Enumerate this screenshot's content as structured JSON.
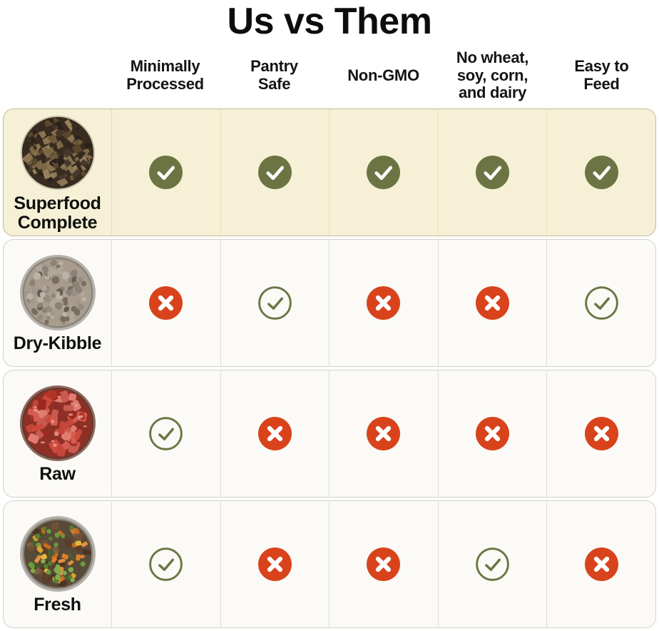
{
  "title": "Us vs Them",
  "columns": [
    {
      "id": "minimally-processed",
      "label": "Minimally\nProcessed"
    },
    {
      "id": "pantry-safe",
      "label": "Pantry\nSafe"
    },
    {
      "id": "non-gmo",
      "label": "Non-GMO"
    },
    {
      "id": "no-wheat-soy-corn-dairy",
      "label": "No wheat,\nsoy, corn,\nand dairy"
    },
    {
      "id": "easy-to-feed",
      "label": "Easy to\nFeed"
    }
  ],
  "rows": [
    {
      "id": "superfood-complete",
      "label": "Superfood Complete",
      "image": "superfood-complete-kibble-photo",
      "highlighted": true,
      "marks": [
        "check-solid",
        "check-solid",
        "check-solid",
        "check-solid",
        "check-solid"
      ]
    },
    {
      "id": "dry-kibble",
      "label": "Dry-Kibble",
      "image": "dry-kibble-bowl-photo",
      "highlighted": false,
      "marks": [
        "cross",
        "check-outline",
        "cross",
        "cross",
        "check-outline"
      ]
    },
    {
      "id": "raw",
      "label": "Raw",
      "image": "raw-meat-bowl-photo",
      "highlighted": false,
      "marks": [
        "check-outline",
        "cross",
        "cross",
        "cross",
        "cross"
      ]
    },
    {
      "id": "fresh",
      "label": "Fresh",
      "image": "fresh-food-bowl-photo",
      "highlighted": false,
      "marks": [
        "check-outline",
        "cross",
        "cross",
        "check-outline",
        "cross"
      ]
    }
  ],
  "colors": {
    "check_green": "#6C7444",
    "cross_red": "#D8431C",
    "highlight_row_bg": "#F6F1D6",
    "row_bg": "#FBFAF6",
    "text": "#111111"
  },
  "chart_data": {
    "type": "table",
    "title": "Us vs Them",
    "columns": [
      "Minimally Processed",
      "Pantry Safe",
      "Non-GMO",
      "No wheat, soy, corn, and dairy",
      "Easy to Feed"
    ],
    "rows": [
      "Superfood Complete",
      "Dry-Kibble",
      "Raw",
      "Fresh"
    ],
    "values": [
      [
        "yes",
        "yes",
        "yes",
        "yes",
        "yes"
      ],
      [
        "no",
        "yes",
        "no",
        "no",
        "yes"
      ],
      [
        "yes",
        "no",
        "no",
        "no",
        "no"
      ],
      [
        "yes",
        "no",
        "no",
        "yes",
        "no"
      ]
    ],
    "legend": {
      "yes_highlight": "solid green check",
      "yes": "outlined green check",
      "no": "red cross"
    }
  }
}
